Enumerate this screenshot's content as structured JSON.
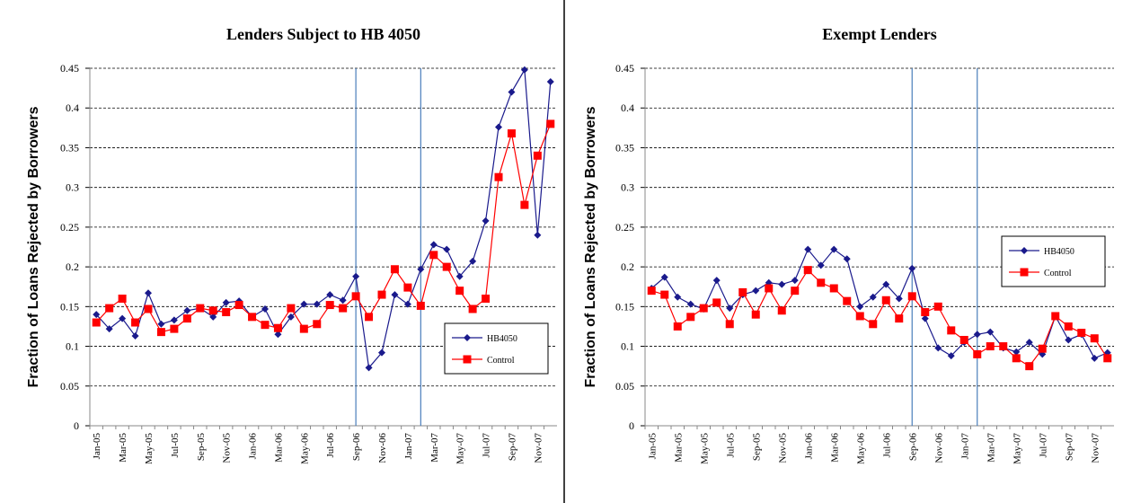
{
  "chart_data": [
    {
      "type": "line",
      "title": "Lenders Subject to HB 4050",
      "y_label": "Fraction of Loans Rejected by Borrowers",
      "categories": [
        "Jan-05",
        null,
        "Mar-05",
        null,
        "May-05",
        null,
        "Jul-05",
        null,
        "Sep-05",
        null,
        "Nov-05",
        null,
        "Jan-06",
        null,
        "Mar-06",
        null,
        "May-06",
        null,
        "Jul-06",
        null,
        "Sep-06",
        null,
        "Nov-06",
        null,
        "Jan-07",
        null,
        "Mar-07",
        null,
        "May-07",
        null,
        "Jul-07",
        null,
        "Sep-07",
        null,
        "Nov-07",
        null
      ],
      "series": [
        {
          "name": "HB4050",
          "color": "#1a1a8c",
          "marker": "diamond",
          "values": [
            0.14,
            0.122,
            0.135,
            0.113,
            0.167,
            0.128,
            0.133,
            0.145,
            0.148,
            0.137,
            0.155,
            0.157,
            0.137,
            0.147,
            0.115,
            0.137,
            0.153,
            0.153,
            0.165,
            0.158,
            0.188,
            0.073,
            0.092,
            0.165,
            0.153,
            0.197,
            0.228,
            0.222,
            0.188,
            0.207,
            0.258,
            0.376,
            0.42,
            0.448,
            0.24,
            0.433
          ]
        },
        {
          "name": "Control",
          "color": "#ff0000",
          "marker": "square",
          "values": [
            0.13,
            0.148,
            0.16,
            0.13,
            0.147,
            0.118,
            0.122,
            0.135,
            0.148,
            0.145,
            0.143,
            0.152,
            0.137,
            0.127,
            0.123,
            0.148,
            0.122,
            0.128,
            0.152,
            0.148,
            0.163,
            0.137,
            0.165,
            0.197,
            0.174,
            0.151,
            0.215,
            0.2,
            0.17,
            0.147,
            0.16,
            0.313,
            0.368,
            0.278,
            0.34,
            0.38
          ]
        }
      ],
      "ylim": [
        0,
        0.45
      ],
      "yticks": [
        0,
        0.05,
        0.1,
        0.15,
        0.2,
        0.25,
        0.3,
        0.35,
        0.4,
        0.45
      ],
      "grid": true,
      "legend": "lower right",
      "reference_lines_at": [
        20,
        25
      ],
      "reference_color": "#4a7ebb"
    },
    {
      "type": "line",
      "title": "Exempt Lenders",
      "y_label": "Fraction of Loans Rejected by Borrowers",
      "categories": [
        "Jan-05",
        null,
        "Mar-05",
        null,
        "May-05",
        null,
        "Jul-05",
        null,
        "Sep-05",
        null,
        "Nov-05",
        null,
        "Jan-06",
        null,
        "Mar-06",
        null,
        "May-06",
        null,
        "Jul-06",
        null,
        "Sep-06",
        null,
        "Nov-06",
        null,
        "Jan-07",
        null,
        "Mar-07",
        null,
        "May-07",
        null,
        "Jul-07",
        null,
        "Sep-07",
        null,
        "Nov-07",
        null
      ],
      "series": [
        {
          "name": "HB4050",
          "color": "#1a1a8c",
          "marker": "diamond",
          "values": [
            0.173,
            0.187,
            0.162,
            0.153,
            0.147,
            0.183,
            0.148,
            0.165,
            0.17,
            0.18,
            0.178,
            0.183,
            0.222,
            0.202,
            0.222,
            0.21,
            0.15,
            0.162,
            0.178,
            0.16,
            0.198,
            0.135,
            0.098,
            0.088,
            0.105,
            0.115,
            0.118,
            0.098,
            0.093,
            0.105,
            0.09,
            0.138,
            0.108,
            0.115,
            0.085,
            0.092
          ]
        },
        {
          "name": "Control",
          "color": "#ff0000",
          "marker": "square",
          "values": [
            0.17,
            0.165,
            0.125,
            0.137,
            0.148,
            0.155,
            0.128,
            0.168,
            0.14,
            0.173,
            0.145,
            0.17,
            0.196,
            0.18,
            0.173,
            0.157,
            0.138,
            0.128,
            0.158,
            0.135,
            0.163,
            0.143,
            0.15,
            0.12,
            0.108,
            0.09,
            0.1,
            0.1,
            0.085,
            0.075,
            0.097,
            0.138,
            0.125,
            0.117,
            0.11,
            0.085
          ]
        }
      ],
      "ylim": [
        0,
        0.45
      ],
      "yticks": [
        0,
        0.05,
        0.1,
        0.15,
        0.2,
        0.25,
        0.3,
        0.35,
        0.4,
        0.45
      ],
      "grid": true,
      "legend": "center right",
      "reference_lines_at": [
        20,
        25
      ],
      "reference_color": "#4a7ebb"
    }
  ]
}
